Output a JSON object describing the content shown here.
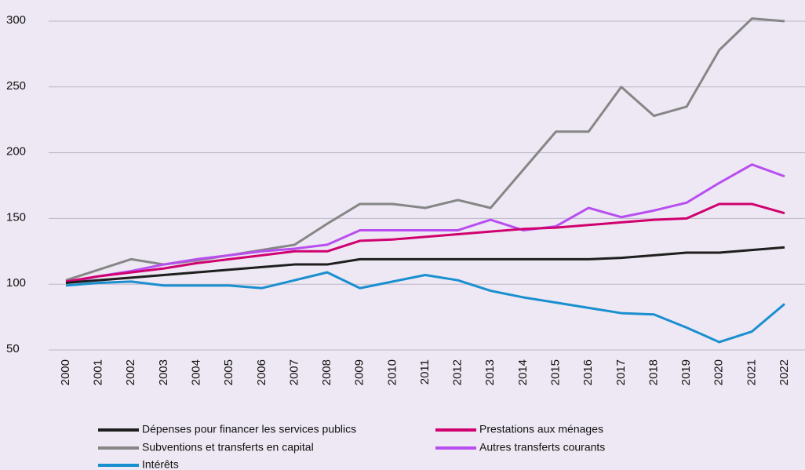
{
  "chart_data": {
    "type": "line",
    "categories": [
      "2000",
      "2001",
      "2002",
      "2003",
      "2004",
      "2005",
      "2006",
      "2007",
      "2008",
      "2009",
      "2010",
      "2011",
      "2012",
      "2013",
      "2014",
      "2015",
      "2016",
      "2017",
      "2018",
      "2019",
      "2020",
      "2021",
      "2022"
    ],
    "series": [
      {
        "name": "Dépenses pour financer les services publics",
        "color": "#1e1e1e",
        "values": [
          101,
          103,
          105,
          107,
          109,
          111,
          113,
          115,
          115,
          119,
          119,
          119,
          119,
          119,
          119,
          119,
          119,
          120,
          122,
          124,
          124,
          126,
          128
        ]
      },
      {
        "name": "Prestations aux ménages",
        "color": "#d0006f",
        "values": [
          102,
          106,
          109,
          112,
          116,
          119,
          122,
          125,
          125,
          133,
          134,
          136,
          138,
          140,
          142,
          143,
          145,
          147,
          149,
          150,
          161,
          161,
          154
        ]
      },
      {
        "name": "Subventions et transferts en capital",
        "color": "#868686",
        "values": [
          103,
          111,
          119,
          115,
          118,
          122,
          126,
          130,
          146,
          161,
          161,
          158,
          164,
          158,
          187,
          216,
          216,
          250,
          228,
          235,
          278,
          302,
          300
        ]
      },
      {
        "name": "Autres transferts courants",
        "color": "#b84ef0",
        "values": [
          101,
          106,
          110,
          115,
          119,
          122,
          125,
          127,
          130,
          141,
          141,
          141,
          141,
          149,
          141,
          144,
          158,
          151,
          156,
          162,
          177,
          191,
          182
        ]
      },
      {
        "name": "Intérêts",
        "color": "#1a8fd0",
        "values": [
          99,
          101,
          102,
          99,
          99,
          99,
          97,
          103,
          109,
          97,
          102,
          107,
          103,
          95,
          90,
          86,
          82,
          78,
          77,
          67,
          56,
          64,
          85
        ]
      }
    ],
    "ylim": [
      50,
      300
    ],
    "yticks": [
      50,
      100,
      150,
      200,
      250,
      300
    ],
    "grid": true
  }
}
